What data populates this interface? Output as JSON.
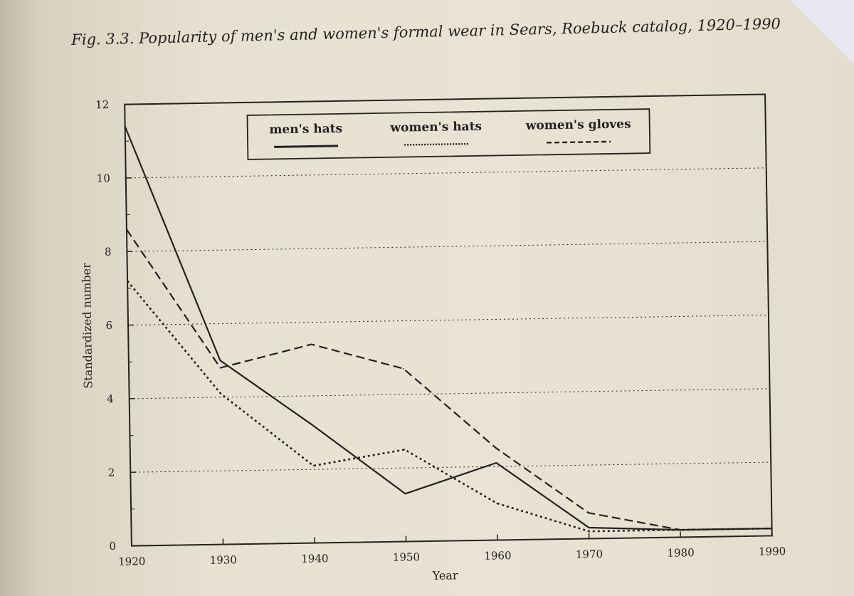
{
  "caption": "Fig. 3.3. Popularity of men's and women's formal wear in Sears, Roebuck catalog, 1920–1990",
  "chart_data": {
    "type": "line",
    "title": "Fig. 3.3. Popularity of men's and women's formal wear in Sears, Roebuck catalog, 1920–1990",
    "xlabel": "Year",
    "ylabel": "Standardized number",
    "x": [
      1920,
      1930,
      1940,
      1950,
      1960,
      1970,
      1980,
      1990
    ],
    "xlim": [
      1920,
      1990
    ],
    "ylim": [
      0,
      12
    ],
    "yticks": [
      0,
      2,
      4,
      6,
      8,
      10,
      12
    ],
    "grid": "horizontal dotted at 2, 4, 6, 8, 10",
    "legend_position": "top-center",
    "series": [
      {
        "name": "men's hats",
        "style": "solid",
        "values": [
          11.4,
          5.0,
          3.2,
          1.3,
          2.1,
          0.3,
          0.2,
          0.2
        ]
      },
      {
        "name": "women's hats",
        "style": "dotted",
        "values": [
          7.2,
          4.1,
          2.1,
          2.5,
          1.0,
          0.2,
          0.2,
          0.2
        ]
      },
      {
        "name": "women's gloves",
        "style": "dashed",
        "values": [
          8.6,
          4.8,
          5.4,
          4.7,
          2.5,
          0.7,
          0.2,
          0.2
        ]
      }
    ]
  },
  "colors": {
    "ink": "#222222",
    "paper": "#e8e3d4"
  }
}
